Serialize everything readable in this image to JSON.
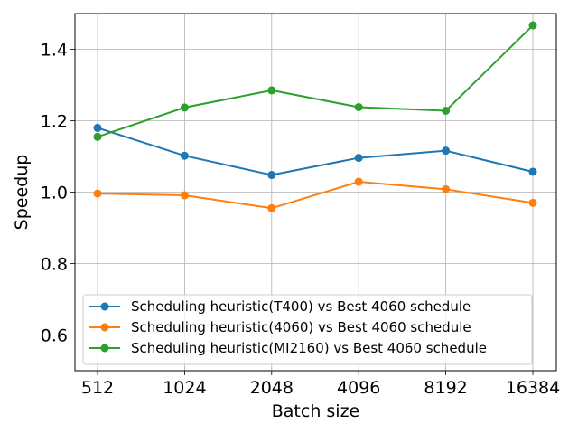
{
  "chart_data": {
    "type": "line",
    "xlabel": "Batch size",
    "ylabel": "Speedup",
    "categories": [
      "512",
      "1024",
      "2048",
      "4096",
      "8192",
      "16384"
    ],
    "ylim": [
      0.5,
      1.5
    ],
    "yticks": [
      "0.6",
      "0.8",
      "1.0",
      "1.2",
      "1.4"
    ],
    "grid": true,
    "legend_position": "bottom-center",
    "series": [
      {
        "name": "Scheduling heuristic(T400) vs Best 4060 schedule",
        "color": "#1f77b4",
        "values": [
          1.18,
          1.102,
          1.048,
          1.096,
          1.116,
          1.057
        ]
      },
      {
        "name": "Scheduling heuristic(4060) vs Best 4060 schedule",
        "color": "#ff7f0e",
        "values": [
          0.996,
          0.991,
          0.955,
          1.029,
          1.008,
          0.97
        ]
      },
      {
        "name": "Scheduling heuristic(MI2160) vs Best 4060 schedule",
        "color": "#2ca02c",
        "values": [
          1.155,
          1.237,
          1.285,
          1.238,
          1.228,
          1.467
        ]
      }
    ]
  }
}
